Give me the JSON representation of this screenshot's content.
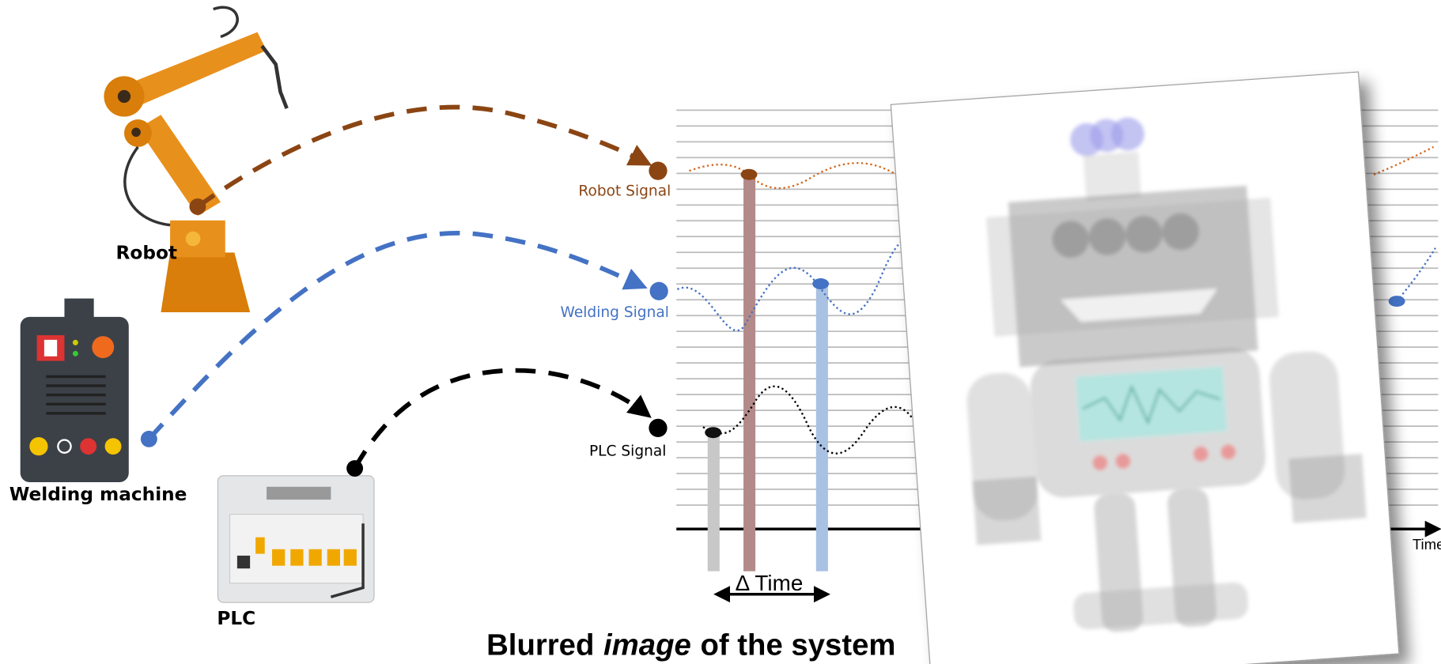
{
  "labels": {
    "robot": "Robot",
    "welding_machine": "Welding machine",
    "plc": "PLC"
  },
  "signals": {
    "robot": "Robot Signal",
    "welding": "Welding Signal",
    "plc": "PLC Signal"
  },
  "delta_time": "Δ Time",
  "axis_label": "Time",
  "title": {
    "before": "Blurred",
    "italic": "image",
    "after": "of the system"
  }
}
